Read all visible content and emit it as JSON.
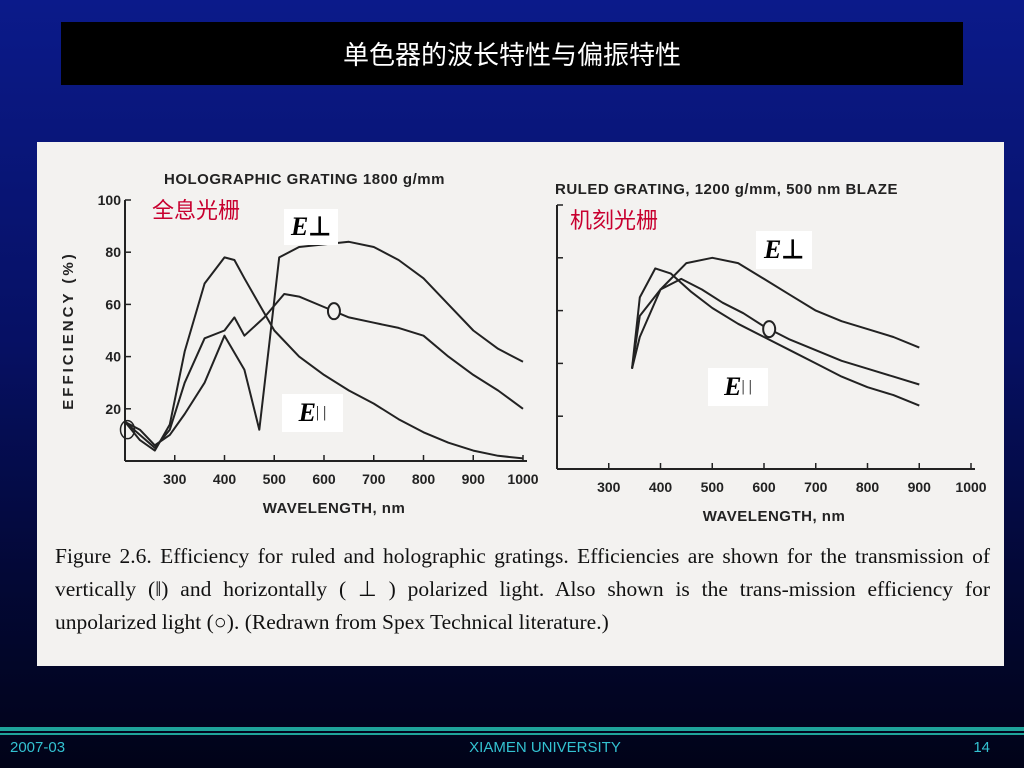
{
  "slide": {
    "title": "单色器的波长特性与偏振特性",
    "caption": "Figure 2.6. Efficiency for ruled and holographic gratings. Efficiencies are shown for the transmission of vertically (‖) and horizontally ( ⊥ ) polarized light. Also shown is the trans-mission efficiency for unpolarized light (○). (Redrawn from Spex Technical literature.)",
    "footer": {
      "left": "2007-03",
      "center": "XIAMEN UNIVERSITY",
      "right": "14"
    },
    "colors": {
      "chinese_label": "#c8002f",
      "footer_text": "#33c2d1",
      "footer_line": "#1fa39a"
    }
  },
  "chart_data": [
    {
      "type": "line",
      "title": "HOLOGRAPHIC GRATING 1800 g/mm",
      "chinese_label": "全息光栅",
      "xlabel": "WAVELENGTH, nm",
      "ylabel": "EFFICIENCY (%)",
      "xlim": [
        200,
        1000
      ],
      "ylim": [
        0,
        100
      ],
      "x_ticks": [
        "300",
        "400",
        "500",
        "600",
        "700",
        "800",
        "900",
        "1000"
      ],
      "y_ticks": [
        "20",
        "40",
        "60",
        "80",
        "100"
      ],
      "series": [
        {
          "name": "E⊥",
          "label_main": "E",
          "label_sub": "⊥",
          "x": [
            200,
            230,
            260,
            290,
            320,
            360,
            400,
            440,
            470,
            490,
            510,
            550,
            600,
            650,
            700,
            750,
            800,
            850,
            900,
            950,
            1000
          ],
          "y": [
            15,
            12,
            6,
            10,
            18,
            30,
            48,
            35,
            12,
            45,
            78,
            82,
            83,
            84,
            82,
            77,
            70,
            60,
            50,
            43,
            38
          ]
        },
        {
          "name": "E‖",
          "label_main": "E",
          "label_sub": "| |",
          "x": [
            200,
            230,
            260,
            290,
            320,
            360,
            400,
            420,
            440,
            470,
            500,
            550,
            600,
            650,
            700,
            750,
            800,
            850,
            900,
            950,
            1000
          ],
          "y": [
            15,
            8,
            4,
            14,
            42,
            68,
            78,
            77,
            70,
            60,
            50,
            40,
            33,
            27,
            22,
            16,
            11,
            7,
            4,
            2,
            1
          ]
        },
        {
          "name": "unpolarized",
          "marker": "○",
          "x": [
            200,
            230,
            260,
            290,
            320,
            360,
            400,
            420,
            440,
            480,
            520,
            550,
            600,
            650,
            700,
            750,
            800,
            850,
            900,
            950,
            1000
          ],
          "y": [
            15,
            10,
            5,
            12,
            30,
            47,
            50,
            55,
            48,
            55,
            64,
            63,
            59,
            55,
            53,
            51,
            48,
            40,
            33,
            27,
            20
          ]
        }
      ]
    },
    {
      "type": "line",
      "title": "RULED GRATING, 1200 g/mm, 500 nm BLAZE",
      "chinese_label": "机刻光栅",
      "xlabel": "WAVELENGTH, nm",
      "xlim": [
        200,
        1000
      ],
      "ylim": [
        0,
        100
      ],
      "x_ticks": [
        "300",
        "400",
        "500",
        "600",
        "700",
        "800",
        "900",
        "1000"
      ],
      "series": [
        {
          "name": "E⊥",
          "label_main": "E",
          "label_sub": "⊥",
          "x": [
            345,
            360,
            400,
            450,
            500,
            550,
            600,
            650,
            700,
            750,
            800,
            850,
            900
          ],
          "y": [
            38,
            50,
            68,
            78,
            80,
            78,
            72,
            66,
            60,
            56,
            53,
            50,
            46
          ]
        },
        {
          "name": "E‖",
          "label_main": "E",
          "label_sub": "| |",
          "x": [
            345,
            360,
            390,
            420,
            460,
            500,
            550,
            600,
            650,
            700,
            750,
            800,
            850,
            900
          ],
          "y": [
            38,
            65,
            76,
            74,
            67,
            61,
            55,
            50,
            45,
            40,
            35,
            31,
            28,
            24
          ]
        },
        {
          "name": "unpolarized",
          "marker": "○",
          "x": [
            345,
            360,
            400,
            440,
            480,
            520,
            560,
            600,
            650,
            700,
            750,
            800,
            850,
            900
          ],
          "y": [
            38,
            58,
            68,
            72,
            68,
            63,
            59,
            54,
            49,
            45,
            41,
            38,
            35,
            32
          ]
        }
      ]
    }
  ]
}
